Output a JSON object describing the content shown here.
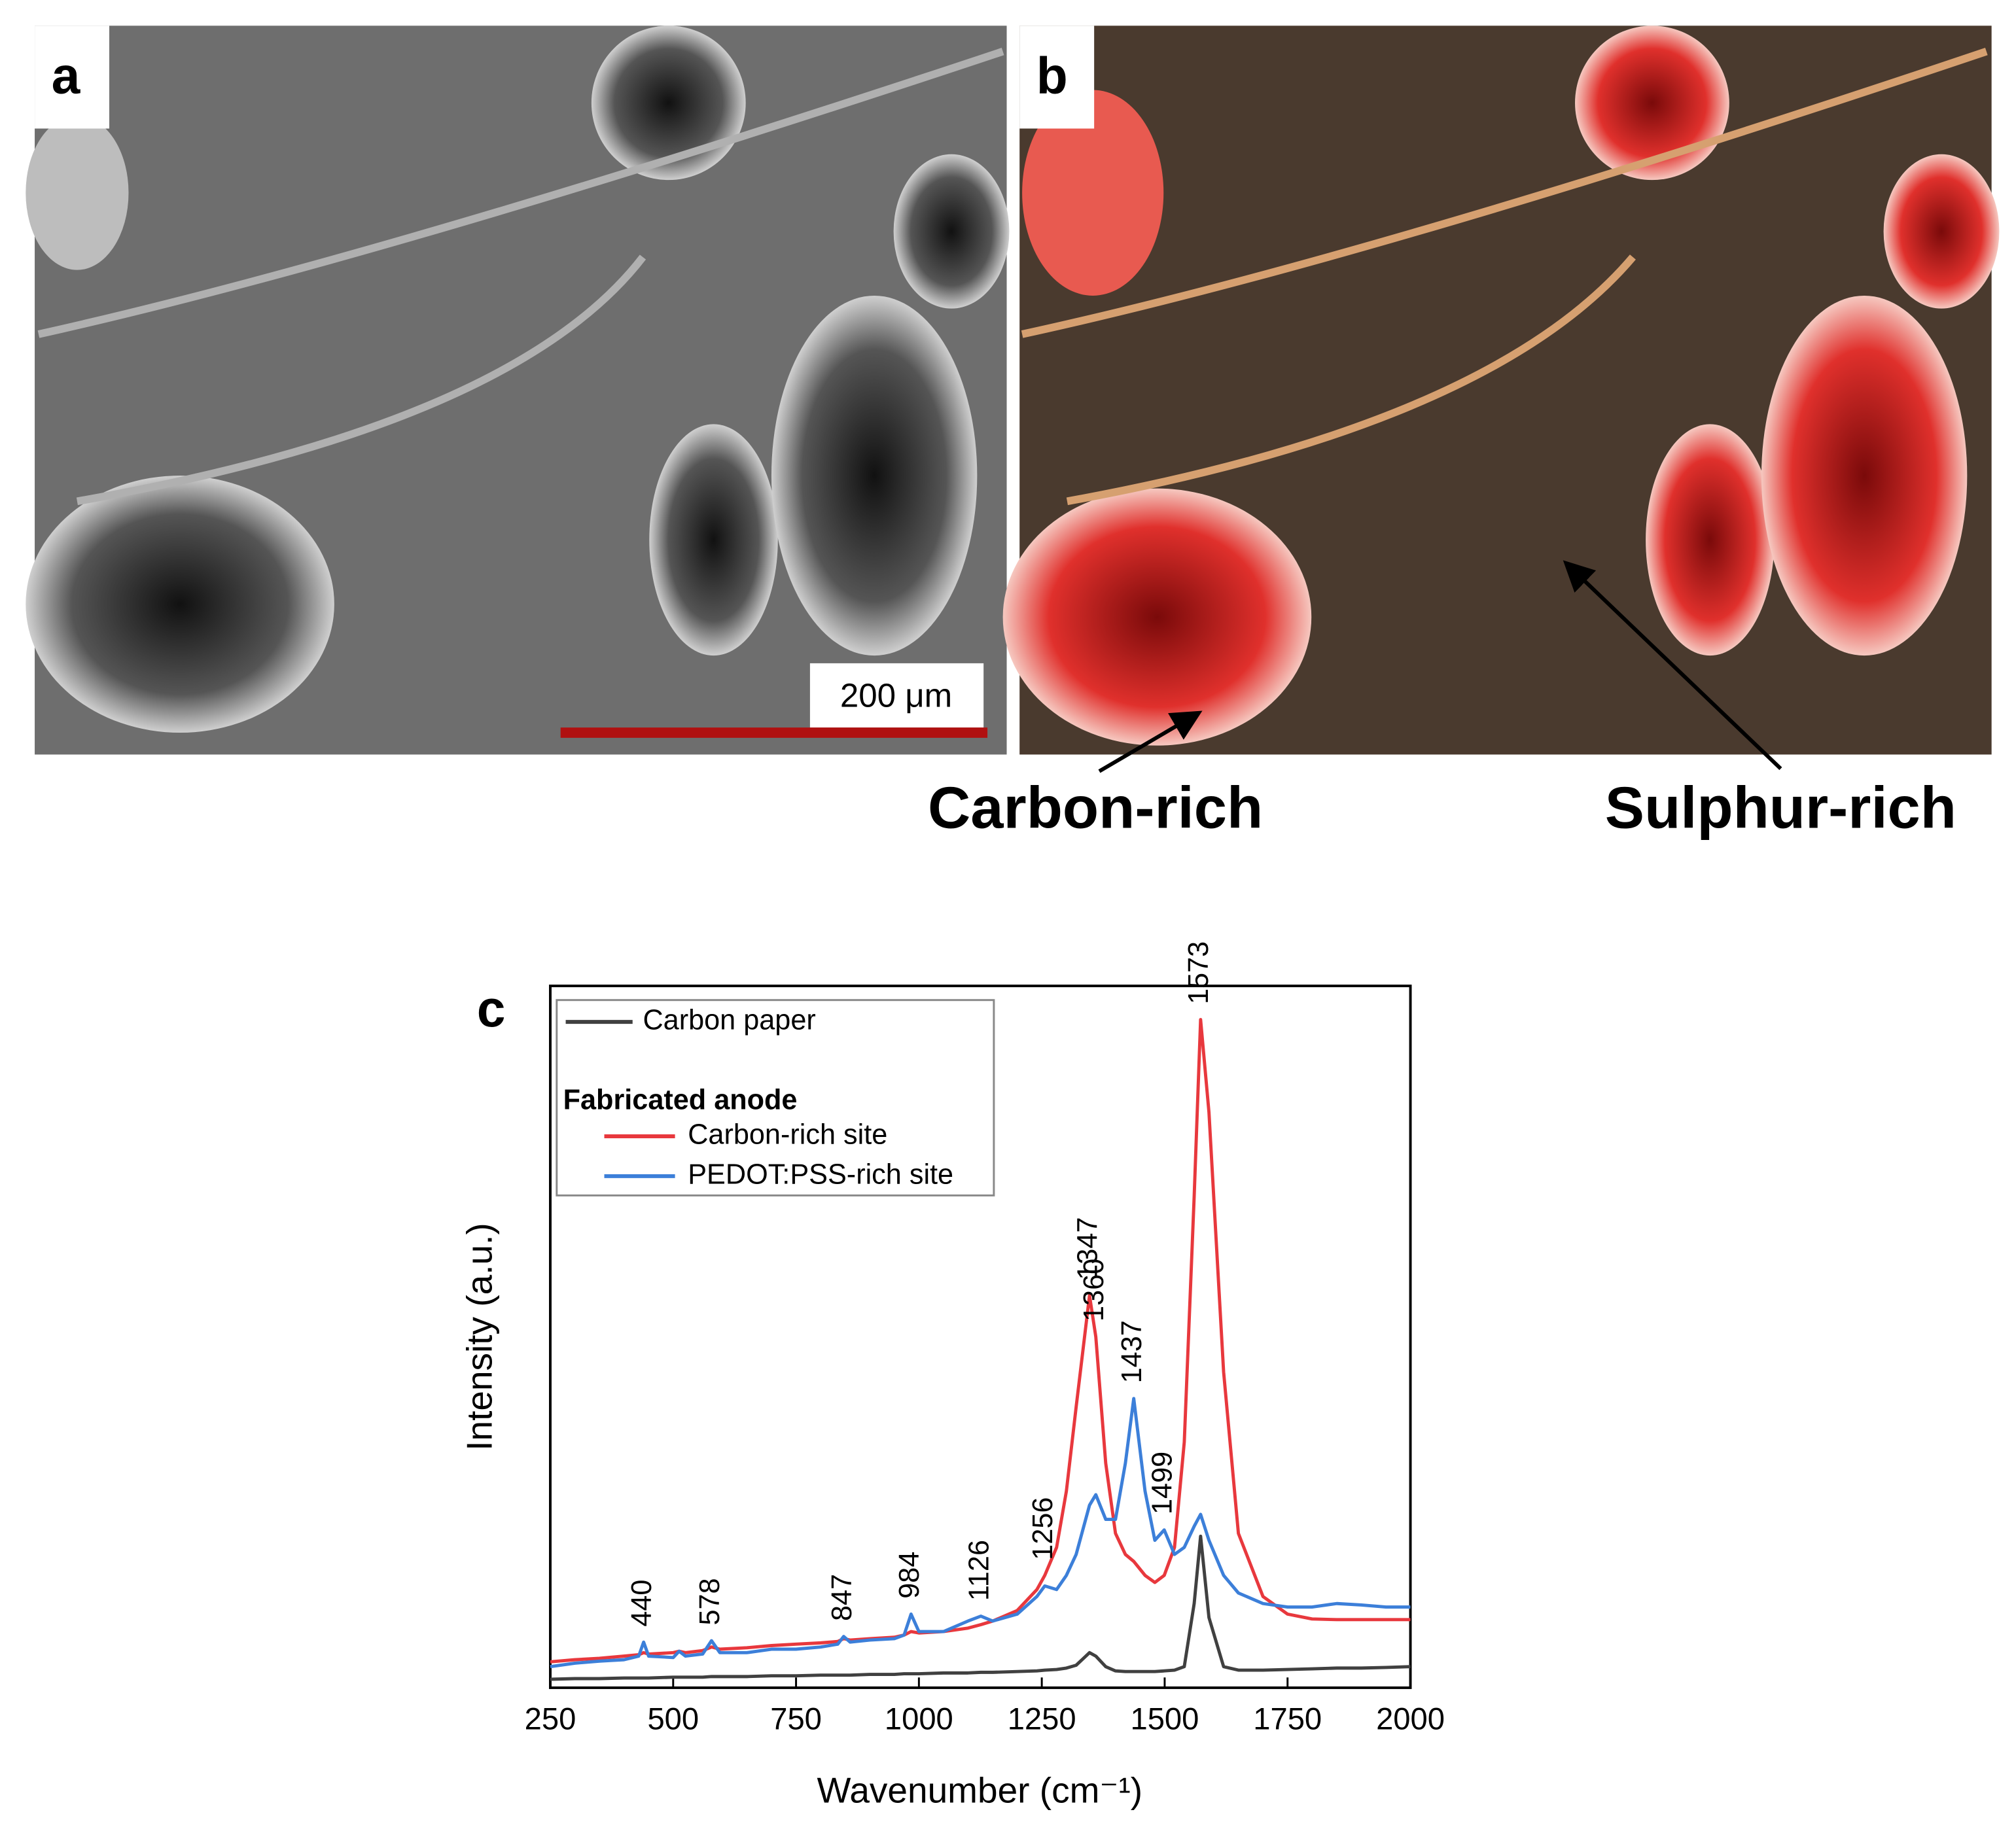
{
  "panels": {
    "a": {
      "label": "a",
      "scale_bar": "200 μm"
    },
    "b": {
      "label": "b",
      "annotations": [
        "Carbon-rich",
        "Sulphur-rich"
      ]
    }
  },
  "chart_data": {
    "type": "line",
    "panel_label": "c",
    "x_label": "Wavenumber (cm⁻¹)",
    "y_label": "Intensity (a.u.)",
    "x": [
      250,
      300,
      350,
      400,
      430,
      440,
      450,
      500,
      512,
      525,
      560,
      578,
      595,
      650,
      700,
      750,
      800,
      835,
      847,
      860,
      900,
      950,
      970,
      984,
      1000,
      1050,
      1100,
      1126,
      1150,
      1200,
      1240,
      1256,
      1280,
      1300,
      1320,
      1347,
      1360,
      1380,
      1400,
      1420,
      1437,
      1460,
      1480,
      1499,
      1520,
      1540,
      1560,
      1573,
      1590,
      1620,
      1650,
      1700,
      1750,
      1800,
      1850,
      1900,
      1950,
      2000
    ],
    "series": [
      {
        "name": "Carbon paper",
        "color": "#404040",
        "values": [
          1.2,
          1.3,
          1.3,
          1.4,
          1.4,
          1.4,
          1.4,
          1.5,
          1.5,
          1.5,
          1.5,
          1.6,
          1.6,
          1.6,
          1.7,
          1.7,
          1.8,
          1.8,
          1.8,
          1.8,
          1.9,
          1.9,
          2,
          2,
          2,
          2.1,
          2.1,
          2.2,
          2.2,
          2.3,
          2.4,
          2.5,
          2.6,
          2.8,
          3.2,
          5,
          4.5,
          3,
          2.4,
          2.3,
          2.3,
          2.3,
          2.3,
          2.4,
          2.5,
          3,
          12,
          21.6,
          10,
          3,
          2.5,
          2.5,
          2.6,
          2.7,
          2.8,
          2.8,
          2.9,
          3
        ]
      },
      {
        "name": "Carbon-rich site",
        "color": "#e8383d",
        "values": [
          3.7,
          4,
          4.2,
          4.5,
          4.7,
          5,
          4.8,
          5,
          5.2,
          5,
          5.3,
          5.8,
          5.5,
          5.7,
          6,
          6.2,
          6.4,
          6.6,
          7,
          6.8,
          7,
          7.2,
          7.5,
          8,
          7.8,
          8,
          8.5,
          9,
          9.5,
          11,
          14,
          16,
          20,
          28,
          40,
          55.9,
          50,
          32,
          22,
          19,
          18,
          16,
          15,
          16,
          20,
          35,
          70,
          95.2,
          82,
          45,
          22,
          13,
          10.5,
          9.8,
          9.7,
          9.7,
          9.7,
          9.7
        ]
      },
      {
        "name": "PEDOT:PSS-rich site",
        "color": "#3c7fd9",
        "values": [
          3,
          3.5,
          3.8,
          4,
          4.5,
          6.5,
          4.5,
          4.3,
          5.2,
          4.5,
          4.8,
          6.7,
          5,
          5,
          5.5,
          5.5,
          5.8,
          6.2,
          7.3,
          6.5,
          6.8,
          7,
          7.5,
          10.5,
          8,
          8,
          9.5,
          10.2,
          9.5,
          10.5,
          13,
          14.5,
          14,
          16,
          19,
          26,
          27.5,
          24,
          24,
          32,
          41.2,
          28,
          21,
          22.5,
          19,
          20,
          23,
          24.7,
          21,
          16,
          13.5,
          12,
          11.5,
          11.5,
          12,
          11.8,
          11.5,
          11.5
        ]
      }
    ],
    "legend_title": "Fabricated anode",
    "peak_labels": [
      440,
      578,
      847,
      984,
      1126,
      1256,
      1347,
      1360,
      1437,
      1499,
      1573
    ],
    "xlim": [
      250,
      2000
    ],
    "xticks": [
      250,
      500,
      750,
      1000,
      1250,
      1500,
      1750,
      2000
    ],
    "ylim": [
      0,
      100
    ]
  }
}
